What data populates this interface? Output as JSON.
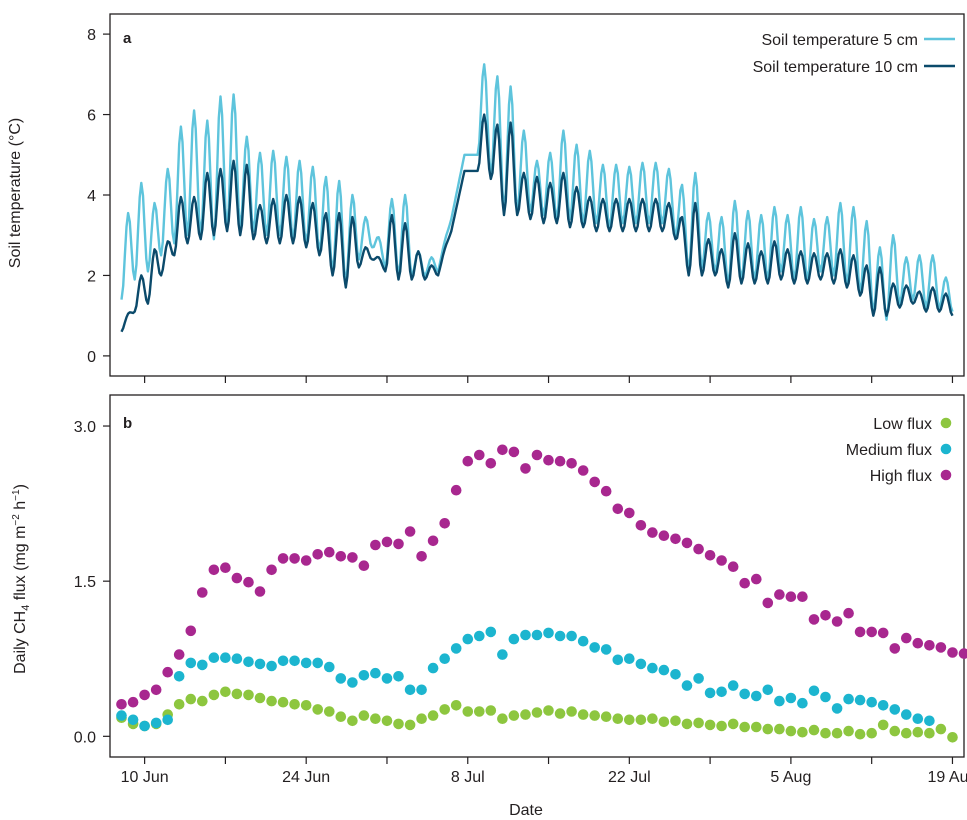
{
  "xlabel": "Date",
  "x_ticks": [
    {
      "label": "10 Jun",
      "day": 1
    },
    {
      "label": "24 Jun",
      "day": 15
    },
    {
      "label": "8 Jul",
      "day": 29
    },
    {
      "label": "22 Jul",
      "day": 43
    },
    {
      "label": "5 Aug",
      "day": 57
    },
    {
      "label": "19 Aug",
      "day": 71
    }
  ],
  "colors": {
    "soil_5cm": "#5ec4dc",
    "soil_10cm": "#0b4a6b",
    "low_flux": "#8dc63f",
    "medium_flux": "#1cb5cf",
    "high_flux": "#a8278f",
    "axis": "#231f20"
  },
  "chart_data": [
    {
      "type": "line",
      "panel_label": "a",
      "title": "",
      "xlabel": "Date",
      "ylabel": "Soil temperature (°C)",
      "xlim": [
        -2,
        72
      ],
      "ylim": [
        -0.5,
        8.5
      ],
      "y_ticks": [
        0,
        2,
        4,
        6,
        8
      ],
      "grid": false,
      "legend_position": "top-right",
      "series": [
        {
          "name": "Soil temperature 5 cm",
          "color_key": "soil_5cm",
          "daily_max": [
            3.3,
            4.2,
            3.6,
            4.5,
            5.6,
            6.1,
            5.9,
            6.3,
            6.5,
            5.5,
            5.1,
            5.1,
            5.0,
            4.9,
            4.8,
            4.7,
            4.5,
            3.7,
            3.3,
            3.2,
            4.0,
            4.0,
            2.6,
            2.4,
            2.2,
            2.2,
            4.5,
            7.5,
            7.4,
            6.7,
            5.6,
            4.9,
            5.1,
            5.6,
            5.3,
            5.1,
            4.8,
            4.7,
            4.7,
            4.8,
            4.8,
            4.8,
            4.7,
            4.5,
            3.6,
            3.6,
            3.8,
            3.6,
            3.5,
            3.6,
            3.6,
            3.7,
            3.3,
            3.5,
            3.9,
            3.8,
            3.6,
            2.8,
            2.8,
            2.4,
            2.6,
            2.5,
            2.0,
            1.6
          ],
          "daily_min": [
            1.4,
            1.9,
            2.1,
            2.5,
            2.8,
            3.0,
            3.0,
            2.9,
            3.2,
            3.2,
            3.1,
            3.0,
            3.0,
            2.9,
            2.8,
            2.6,
            2.1,
            1.8,
            2.4,
            2.7,
            2.2,
            2.0,
            2.0,
            2.0,
            2.1,
            3.4,
            5.0,
            5.0,
            4.5,
            3.6,
            3.6,
            3.6,
            3.5,
            3.4,
            3.4,
            3.3,
            3.3,
            3.2,
            3.3,
            3.3,
            3.3,
            3.3,
            3.0,
            2.1,
            2.2,
            2.1,
            1.8,
            1.9,
            1.9,
            1.9,
            2.1,
            1.9,
            1.9,
            2.1,
            2.0,
            1.8,
            1.6,
            1.1,
            0.9,
            1.3,
            1.4,
            1.2,
            1.2,
            1.1
          ]
        },
        {
          "name": "Soil temperature 10 cm",
          "color_key": "soil_10cm",
          "daily_max": [
            0.8,
            1.9,
            2.3,
            2.6,
            3.8,
            3.9,
            4.5,
            4.6,
            4.9,
            4.8,
            3.8,
            3.9,
            4.0,
            4.0,
            3.9,
            3.8,
            3.7,
            3.2,
            2.6,
            2.6,
            3.6,
            3.3,
            2.6,
            2.2,
            2.1,
            2.1,
            4.6,
            6.1,
            6.2,
            5.8,
            4.6,
            4.5,
            4.3,
            4.6,
            4.2,
            4.0,
            3.9,
            3.9,
            3.9,
            3.9,
            3.9,
            3.9,
            3.9,
            3.8,
            2.9,
            2.8,
            3.0,
            2.8,
            2.6,
            2.8,
            2.7,
            2.6,
            2.5,
            2.6,
            2.7,
            2.6,
            2.5,
            2.2,
            1.7,
            1.7,
            1.7,
            1.7,
            1.6,
            1.4
          ],
          "daily_min": [
            0.6,
            1.1,
            1.3,
            2.0,
            2.5,
            2.8,
            2.9,
            3.0,
            3.1,
            3.0,
            2.9,
            2.8,
            2.8,
            2.8,
            2.7,
            2.5,
            2.0,
            1.7,
            2.2,
            2.4,
            2.1,
            1.9,
            1.9,
            1.9,
            2.0,
            3.1,
            4.6,
            4.6,
            4.4,
            3.5,
            3.5,
            3.4,
            3.3,
            3.3,
            3.2,
            3.2,
            3.1,
            3.1,
            3.1,
            3.1,
            3.1,
            3.1,
            2.9,
            2.0,
            2.0,
            2.0,
            1.7,
            1.8,
            1.8,
            1.8,
            1.9,
            1.8,
            1.8,
            1.9,
            1.8,
            1.7,
            1.5,
            1.0,
            1.0,
            1.2,
            1.3,
            1.1,
            1.1,
            1.0
          ]
        }
      ]
    },
    {
      "type": "scatter",
      "panel_label": "b",
      "title": "",
      "xlabel": "Date",
      "ylabel_parts": {
        "prefix": "Daily CH",
        "sub": "4",
        "middle": " flux (mg m",
        "sup1": "−2",
        "middle2": " h",
        "sup2": "−1",
        "suffix": ")"
      },
      "xlim": [
        -2,
        72
      ],
      "ylim": [
        -0.2,
        3.3
      ],
      "y_ticks": [
        {
          "value": 0.0,
          "label": "0.0"
        },
        {
          "value": 1.5,
          "label": "1.5"
        },
        {
          "value": 3.0,
          "label": "3.0"
        }
      ],
      "grid": false,
      "legend_position": "top-right",
      "x_day_start": -1,
      "series": [
        {
          "name": "Low flux",
          "color_key": "low_flux",
          "values": [
            0.18,
            0.12,
            0.1,
            0.12,
            0.21,
            0.31,
            0.36,
            0.34,
            0.4,
            0.43,
            0.41,
            0.4,
            0.37,
            0.34,
            0.33,
            0.31,
            0.3,
            0.26,
            0.24,
            0.19,
            0.15,
            0.2,
            0.17,
            0.15,
            0.12,
            0.11,
            0.17,
            0.2,
            0.26,
            0.3,
            0.24,
            0.24,
            0.25,
            0.17,
            0.2,
            0.21,
            0.23,
            0.25,
            0.22,
            0.24,
            0.21,
            0.2,
            0.19,
            0.17,
            0.16,
            0.16,
            0.17,
            0.14,
            0.15,
            0.12,
            0.13,
            0.11,
            0.1,
            0.12,
            0.09,
            0.09,
            0.07,
            0.07,
            0.05,
            0.04,
            0.06,
            0.03,
            0.03,
            0.05,
            0.02,
            0.03,
            0.11,
            0.05,
            0.03,
            0.04,
            0.03,
            0.07,
            -0.01
          ]
        },
        {
          "name": "Medium flux",
          "color_key": "medium_flux",
          "values": [
            0.2,
            0.16,
            0.1,
            0.13,
            0.16,
            0.58,
            0.71,
            0.69,
            0.76,
            0.76,
            0.75,
            0.72,
            0.7,
            0.68,
            0.73,
            0.73,
            0.71,
            0.71,
            0.67,
            0.56,
            0.52,
            0.59,
            0.61,
            0.56,
            0.58,
            0.45,
            0.45,
            0.66,
            0.75,
            0.85,
            0.94,
            0.97,
            1.01,
            0.79,
            0.94,
            0.98,
            0.98,
            1.0,
            0.97,
            0.97,
            0.92,
            0.86,
            0.84,
            0.74,
            0.75,
            0.7,
            0.66,
            0.64,
            0.6,
            0.49,
            0.56,
            0.42,
            0.43,
            0.49,
            0.41,
            0.39,
            0.45,
            0.34,
            0.37,
            0.32,
            0.44,
            0.38,
            0.27,
            0.36,
            0.35,
            0.33,
            0.3,
            0.26,
            0.21,
            0.17,
            0.15
          ]
        },
        {
          "name": "High flux",
          "color_key": "high_flux",
          "values": [
            0.31,
            0.33,
            0.4,
            0.45,
            0.62,
            0.79,
            1.02,
            1.39,
            1.61,
            1.63,
            1.53,
            1.49,
            1.4,
            1.61,
            1.72,
            1.72,
            1.7,
            1.76,
            1.78,
            1.74,
            1.73,
            1.65,
            1.85,
            1.88,
            1.86,
            1.98,
            1.74,
            1.89,
            2.06,
            2.38,
            2.66,
            2.72,
            2.64,
            2.77,
            2.75,
            2.59,
            2.72,
            2.67,
            2.66,
            2.64,
            2.57,
            2.46,
            2.37,
            2.2,
            2.16,
            2.04,
            1.97,
            1.94,
            1.91,
            1.87,
            1.81,
            1.75,
            1.7,
            1.64,
            1.48,
            1.52,
            1.29,
            1.37,
            1.35,
            1.35,
            1.13,
            1.17,
            1.11,
            1.19,
            1.01,
            1.01,
            1.0,
            0.85,
            0.95,
            0.9,
            0.88,
            0.86,
            0.81,
            0.8,
            0.63
          ]
        }
      ]
    }
  ]
}
